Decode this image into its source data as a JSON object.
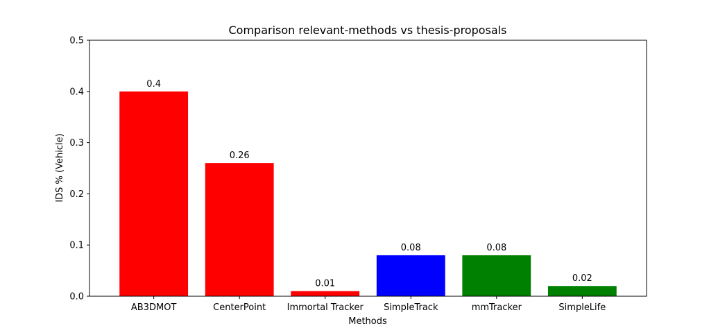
{
  "chart_data": {
    "type": "bar",
    "title": "Comparison relevant-methods vs thesis-proposals",
    "xlabel": "Methods",
    "ylabel": "IDS % (Vehicle)",
    "categories": [
      "AB3DMOT",
      "CenterPoint",
      "Immortal Tracker",
      "SimpleTrack",
      "mmTracker",
      "SimpleLife"
    ],
    "values": [
      0.4,
      0.26,
      0.01,
      0.08,
      0.08,
      0.02
    ],
    "value_labels": [
      "0.4",
      "0.26",
      "0.01",
      "0.08",
      "0.08",
      "0.02"
    ],
    "colors": [
      "#ff0000",
      "#ff0000",
      "#ff0000",
      "#0000ff",
      "#008000",
      "#008000"
    ],
    "ylim": [
      0,
      0.5
    ],
    "yticks": [
      0.0,
      0.1,
      0.2,
      0.3,
      0.4,
      0.5
    ],
    "ytick_labels": [
      "0.0",
      "0.1",
      "0.2",
      "0.3",
      "0.4",
      "0.5"
    ],
    "grid": false,
    "legend": false
  }
}
